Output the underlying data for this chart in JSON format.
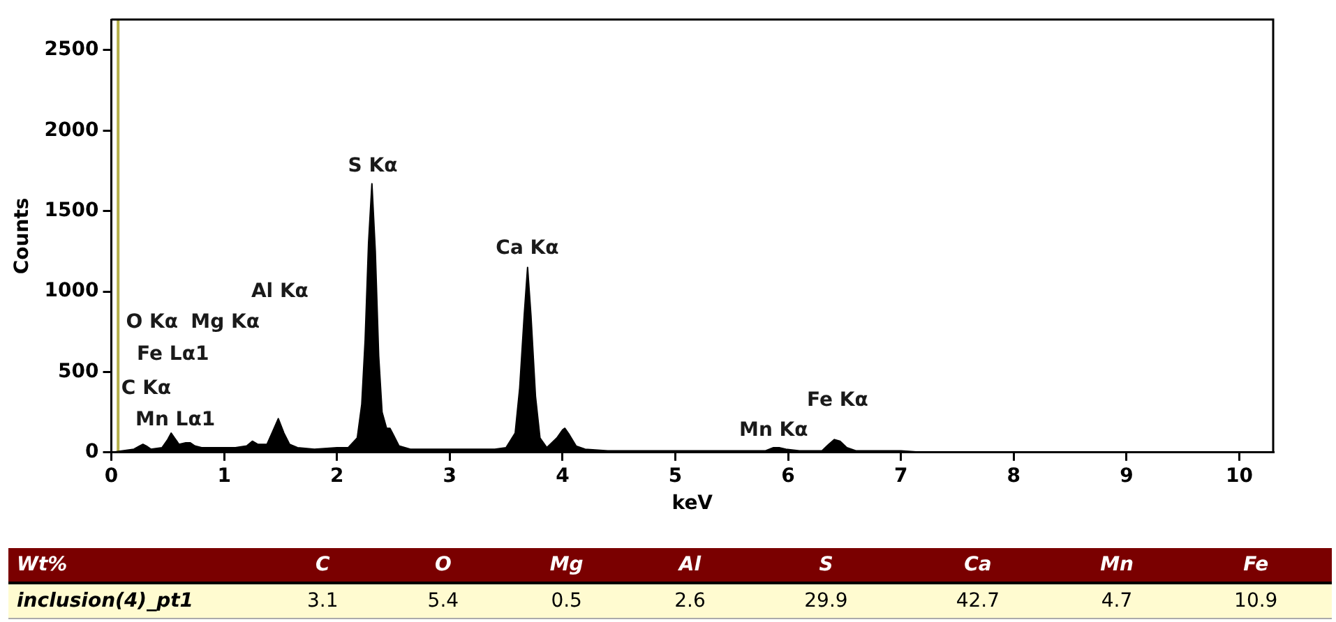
{
  "chart_data": {
    "type": "area",
    "xlabel": "keV",
    "ylabel": "Counts",
    "xlim": [
      0,
      10.3
    ],
    "xticks": [
      0,
      1,
      2,
      3,
      4,
      5,
      6,
      7,
      8,
      9,
      10
    ],
    "ylim": [
      0,
      2690
    ],
    "yticks": [
      0,
      500,
      1000,
      1500,
      2000,
      2500
    ],
    "legend": false,
    "grid": false,
    "x": [
      0,
      0.1,
      0.2,
      0.25,
      0.28,
      0.31,
      0.35,
      0.45,
      0.5,
      0.53,
      0.56,
      0.6,
      0.66,
      0.7,
      0.74,
      0.8,
      0.9,
      1.0,
      1.1,
      1.2,
      1.25,
      1.3,
      1.38,
      1.43,
      1.48,
      1.53,
      1.58,
      1.65,
      1.8,
      2.0,
      2.1,
      2.18,
      2.22,
      2.25,
      2.28,
      2.31,
      2.34,
      2.37,
      2.4,
      2.44,
      2.47,
      2.5,
      2.55,
      2.65,
      2.8,
      3.0,
      3.2,
      3.4,
      3.5,
      3.58,
      3.62,
      3.66,
      3.69,
      3.72,
      3.76,
      3.8,
      3.86,
      3.95,
      4.0,
      4.02,
      4.06,
      4.12,
      4.2,
      4.4,
      4.6,
      5.0,
      5.4,
      5.8,
      5.87,
      5.92,
      5.98,
      6.1,
      6.3,
      6.36,
      6.41,
      6.46,
      6.52,
      6.6,
      7.0,
      7.2,
      8,
      9,
      10,
      10.3
    ],
    "series": [
      {
        "color": "#000000",
        "values": [
          0,
          10,
          20,
          40,
          50,
          40,
          20,
          30,
          80,
          120,
          90,
          50,
          60,
          60,
          40,
          30,
          30,
          30,
          30,
          40,
          70,
          50,
          50,
          130,
          210,
          120,
          50,
          30,
          20,
          30,
          30,
          90,
          300,
          700,
          1300,
          1670,
          1250,
          600,
          250,
          150,
          150,
          110,
          40,
          20,
          20,
          20,
          20,
          20,
          30,
          120,
          400,
          850,
          1150,
          850,
          350,
          90,
          30,
          90,
          140,
          150,
          110,
          40,
          20,
          10,
          10,
          10,
          10,
          10,
          30,
          30,
          20,
          10,
          10,
          50,
          80,
          70,
          30,
          10,
          10,
          0,
          0,
          0,
          0,
          0
        ]
      }
    ],
    "ref_lines": [
      {
        "axis": "x",
        "value": 0.06,
        "color": "#b5b04a"
      }
    ],
    "annotations": [
      "S Kα",
      "Ca Kα",
      "Al Kα",
      "O Kα",
      "Mg Kα",
      "Fe Lα1",
      "C Kα",
      "Mn Lα1",
      "Mn Kα",
      "Fe Kα",
      "Wt%",
      "C",
      "O",
      "Mg",
      "Al",
      "S",
      "Ca",
      "Mn",
      "Fe",
      "inclusion(4)_pt1",
      "3.1",
      "5.4",
      "0.5",
      "2.6",
      "29.9",
      "42.7",
      "4.7",
      "10.9"
    ]
  }
}
